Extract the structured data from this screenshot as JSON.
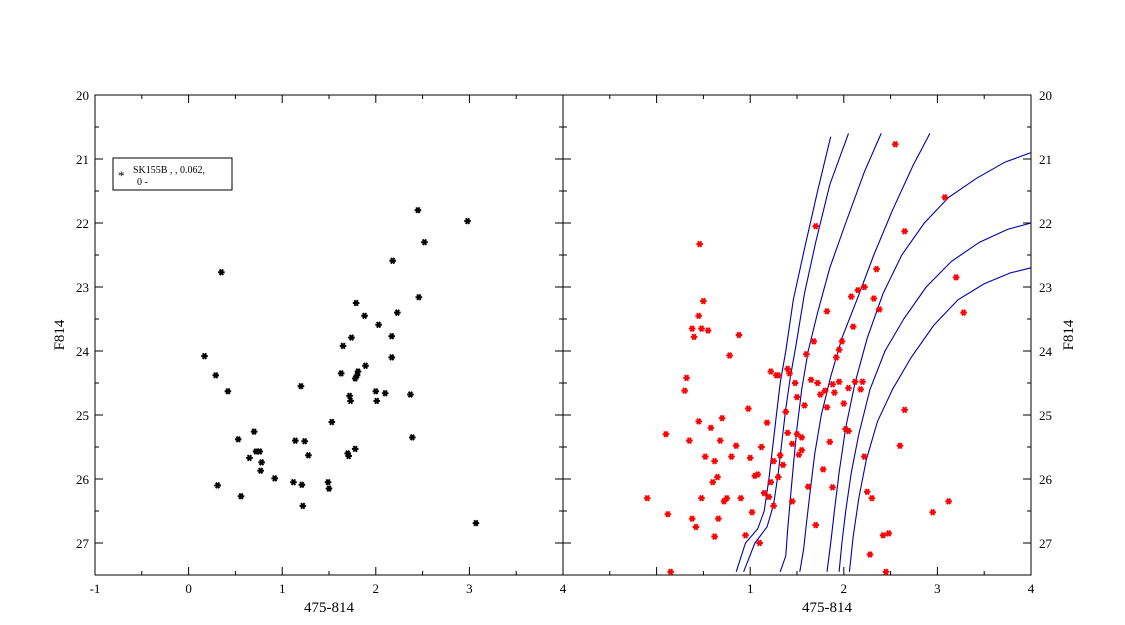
{
  "chart_data": [
    {
      "type": "scatter",
      "panel": "left",
      "xlabel": "475-814",
      "ylabel": "F814",
      "xlim": [
        -1,
        4
      ],
      "ylim": [
        27.5,
        20
      ],
      "y_inverted": true,
      "x_ticks": [
        "-1",
        "0",
        "1",
        "2",
        "3",
        "4"
      ],
      "y_ticks": [
        "20",
        "21",
        "22",
        "23",
        "24",
        "25",
        "26",
        "27"
      ],
      "legend": {
        "label_line1": "SK155B  ,    , 0.062,",
        "label_line2": "0 -",
        "position": "top-left"
      },
      "marker_color": "#000000",
      "series": [
        {
          "x": [
            0.17,
            0.29,
            0.31,
            0.35,
            0.42,
            0.53,
            0.56,
            0.65,
            0.7,
            0.72,
            0.76,
            0.77,
            0.78,
            0.92,
            1.12,
            1.14,
            1.2,
            1.21,
            1.22,
            1.24,
            1.28,
            1.49,
            1.5,
            1.53,
            1.63,
            1.65,
            1.7,
            1.71,
            1.72,
            1.73,
            1.74,
            1.78,
            1.78,
            1.79,
            1.8,
            1.81,
            1.88,
            1.89,
            2.0,
            2.01,
            2.03,
            2.1,
            2.17,
            2.17,
            2.18,
            2.23,
            2.37,
            2.39,
            2.45,
            2.46,
            2.52,
            2.98,
            3.07
          ],
          "y": [
            24.08,
            24.38,
            26.1,
            22.77,
            24.63,
            25.38,
            26.27,
            25.67,
            25.26,
            25.57,
            25.57,
            25.87,
            25.74,
            25.99,
            26.05,
            25.4,
            24.55,
            26.09,
            26.42,
            25.41,
            25.63,
            26.05,
            26.15,
            25.11,
            24.35,
            23.92,
            25.6,
            25.64,
            24.7,
            24.78,
            23.79,
            24.43,
            25.53,
            23.25,
            24.38,
            24.32,
            23.45,
            24.23,
            24.63,
            24.78,
            23.59,
            24.66,
            24.1,
            23.77,
            22.59,
            23.4,
            24.68,
            25.35,
            21.8,
            23.16,
            22.3,
            21.97,
            26.69
          ]
        }
      ]
    },
    {
      "type": "scatter",
      "panel": "right",
      "xlabel": "475-814",
      "ylabel": "F814",
      "xlim": [
        -1,
        4
      ],
      "ylim": [
        27.5,
        20
      ],
      "y_inverted": true,
      "x_ticks": [
        "1",
        "2",
        "3",
        "4"
      ],
      "y_ticks": [
        "20",
        "21",
        "22",
        "23",
        "24",
        "25",
        "26",
        "27"
      ],
      "marker_color": "#ff0000",
      "line_color": "#0000aa",
      "series": [
        {
          "x": [
            -0.1,
            0.15,
            0.1,
            0.12,
            0.3,
            0.32,
            0.35,
            0.38,
            0.38,
            0.4,
            0.42,
            0.45,
            0.45,
            0.46,
            0.48,
            0.48,
            0.5,
            0.52,
            0.55,
            0.58,
            0.6,
            0.62,
            0.62,
            0.65,
            0.66,
            0.68,
            0.7,
            0.72,
            0.75,
            0.78,
            0.8,
            0.85,
            0.88,
            0.9,
            0.95,
            0.98,
            1.0,
            1.02,
            1.05,
            1.08,
            1.1,
            1.12,
            1.15,
            1.18,
            1.2,
            1.22,
            1.22,
            1.25,
            1.25,
            1.28,
            1.3,
            1.3,
            1.32,
            1.35,
            1.38,
            1.4,
            1.4,
            1.42,
            1.45,
            1.45,
            1.48,
            1.5,
            1.5,
            1.52,
            1.55,
            1.55,
            1.58,
            1.6,
            1.62,
            1.65,
            1.68,
            1.7,
            1.7,
            1.72,
            1.75,
            1.78,
            1.8,
            1.82,
            1.82,
            1.85,
            1.88,
            1.88,
            1.9,
            1.92,
            1.95,
            1.95,
            1.98,
            2.0,
            2.02,
            2.05,
            2.05,
            2.08,
            2.1,
            2.12,
            2.15,
            2.18,
            2.2,
            2.22,
            2.22,
            2.25,
            2.28,
            2.3,
            2.32,
            2.35,
            2.38,
            2.42,
            2.45,
            2.48,
            2.55,
            2.6,
            2.65,
            2.65,
            2.95,
            3.08,
            3.12,
            3.2,
            3.28
          ],
          "y": [
            26.3,
            27.45,
            25.3,
            26.55,
            24.62,
            24.42,
            25.4,
            23.65,
            26.62,
            23.78,
            26.75,
            25.1,
            23.45,
            22.33,
            23.65,
            26.3,
            23.22,
            25.65,
            23.68,
            25.2,
            26.05,
            25.72,
            26.9,
            25.97,
            26.62,
            25.4,
            25.05,
            26.35,
            26.3,
            24.07,
            25.65,
            25.48,
            23.75,
            26.3,
            26.88,
            24.9,
            25.67,
            26.52,
            25.95,
            25.93,
            27.0,
            25.5,
            26.22,
            25.12,
            26.28,
            26.05,
            24.32,
            25.72,
            26.42,
            24.38,
            24.38,
            25.97,
            25.63,
            25.78,
            24.95,
            25.28,
            24.28,
            24.35,
            25.45,
            26.35,
            24.5,
            25.3,
            24.72,
            25.62,
            25.35,
            25.55,
            24.85,
            24.05,
            26.12,
            24.45,
            23.85,
            26.72,
            22.05,
            24.5,
            24.68,
            25.85,
            24.62,
            23.38,
            24.88,
            25.42,
            24.52,
            26.13,
            24.65,
            24.1,
            23.98,
            24.48,
            23.85,
            24.82,
            25.22,
            24.58,
            25.25,
            23.15,
            23.62,
            24.48,
            23.05,
            24.6,
            24.48,
            25.65,
            23.0,
            26.2,
            27.18,
            26.3,
            23.18,
            22.72,
            23.35,
            26.88,
            27.45,
            26.85,
            20.77,
            25.48,
            22.13,
            24.92,
            26.52,
            21.6,
            26.35,
            22.85,
            23.4
          ],
          "comment": "red star markers"
        }
      ],
      "isochrones": [
        {
          "name": "",
          "x": [
            0.85,
            0.95,
            1.08,
            1.15,
            1.2,
            1.24,
            1.28,
            1.32,
            1.38,
            1.46,
            1.58,
            1.72,
            1.86
          ],
          "y": [
            27.45,
            27.0,
            26.78,
            26.5,
            26.0,
            25.5,
            25.0,
            24.5,
            24.0,
            23.2,
            22.4,
            21.5,
            20.65
          ]
        },
        {
          "name": "",
          "x": [
            0.93,
            1.05,
            1.18,
            1.25,
            1.3,
            1.34,
            1.38,
            1.43,
            1.49,
            1.58,
            1.7,
            1.85,
            2.05
          ],
          "y": [
            27.45,
            27.0,
            26.75,
            26.4,
            25.9,
            25.4,
            24.9,
            24.4,
            23.9,
            23.1,
            22.3,
            21.4,
            20.6
          ]
        },
        {
          "name": "",
          "x": [
            1.32,
            1.38,
            1.4,
            1.43,
            1.46,
            1.5,
            1.55,
            1.62,
            1.72,
            1.85,
            2.02,
            2.22,
            2.4
          ],
          "y": [
            27.45,
            27.2,
            26.8,
            26.3,
            25.8,
            25.2,
            24.6,
            24.0,
            23.4,
            22.7,
            22.0,
            21.2,
            20.6
          ]
        },
        {
          "name": "",
          "x": [
            1.53,
            1.57,
            1.6,
            1.64,
            1.69,
            1.76,
            1.86,
            1.98,
            2.14,
            2.32,
            2.52,
            2.74,
            2.92
          ],
          "y": [
            27.45,
            27.1,
            26.7,
            26.2,
            25.6,
            25.0,
            24.4,
            23.8,
            23.2,
            22.5,
            21.8,
            21.1,
            20.6
          ]
        },
        {
          "name": "",
          "x": [
            1.82,
            1.86,
            1.9,
            1.95,
            2.02,
            2.12,
            2.25,
            2.42,
            2.62,
            2.86,
            3.12,
            3.42,
            3.72,
            4.0
          ],
          "y": [
            27.45,
            27.0,
            26.5,
            25.9,
            25.2,
            24.5,
            23.8,
            23.1,
            22.5,
            22.0,
            21.6,
            21.3,
            21.05,
            20.9
          ]
        },
        {
          "name": "",
          "x": [
            1.95,
            1.98,
            2.02,
            2.08,
            2.16,
            2.28,
            2.44,
            2.64,
            2.88,
            3.15,
            3.45,
            3.75,
            4.0
          ],
          "y": [
            27.45,
            27.0,
            26.5,
            25.9,
            25.3,
            24.6,
            24.0,
            23.5,
            23.0,
            22.6,
            22.3,
            22.1,
            22.0
          ]
        },
        {
          "name": "",
          "x": [
            2.06,
            2.1,
            2.16,
            2.24,
            2.36,
            2.52,
            2.72,
            2.96,
            3.22,
            3.5,
            3.78,
            4.0
          ],
          "y": [
            27.45,
            26.9,
            26.3,
            25.7,
            25.1,
            24.6,
            24.1,
            23.6,
            23.2,
            22.95,
            22.78,
            22.7
          ]
        }
      ]
    }
  ]
}
